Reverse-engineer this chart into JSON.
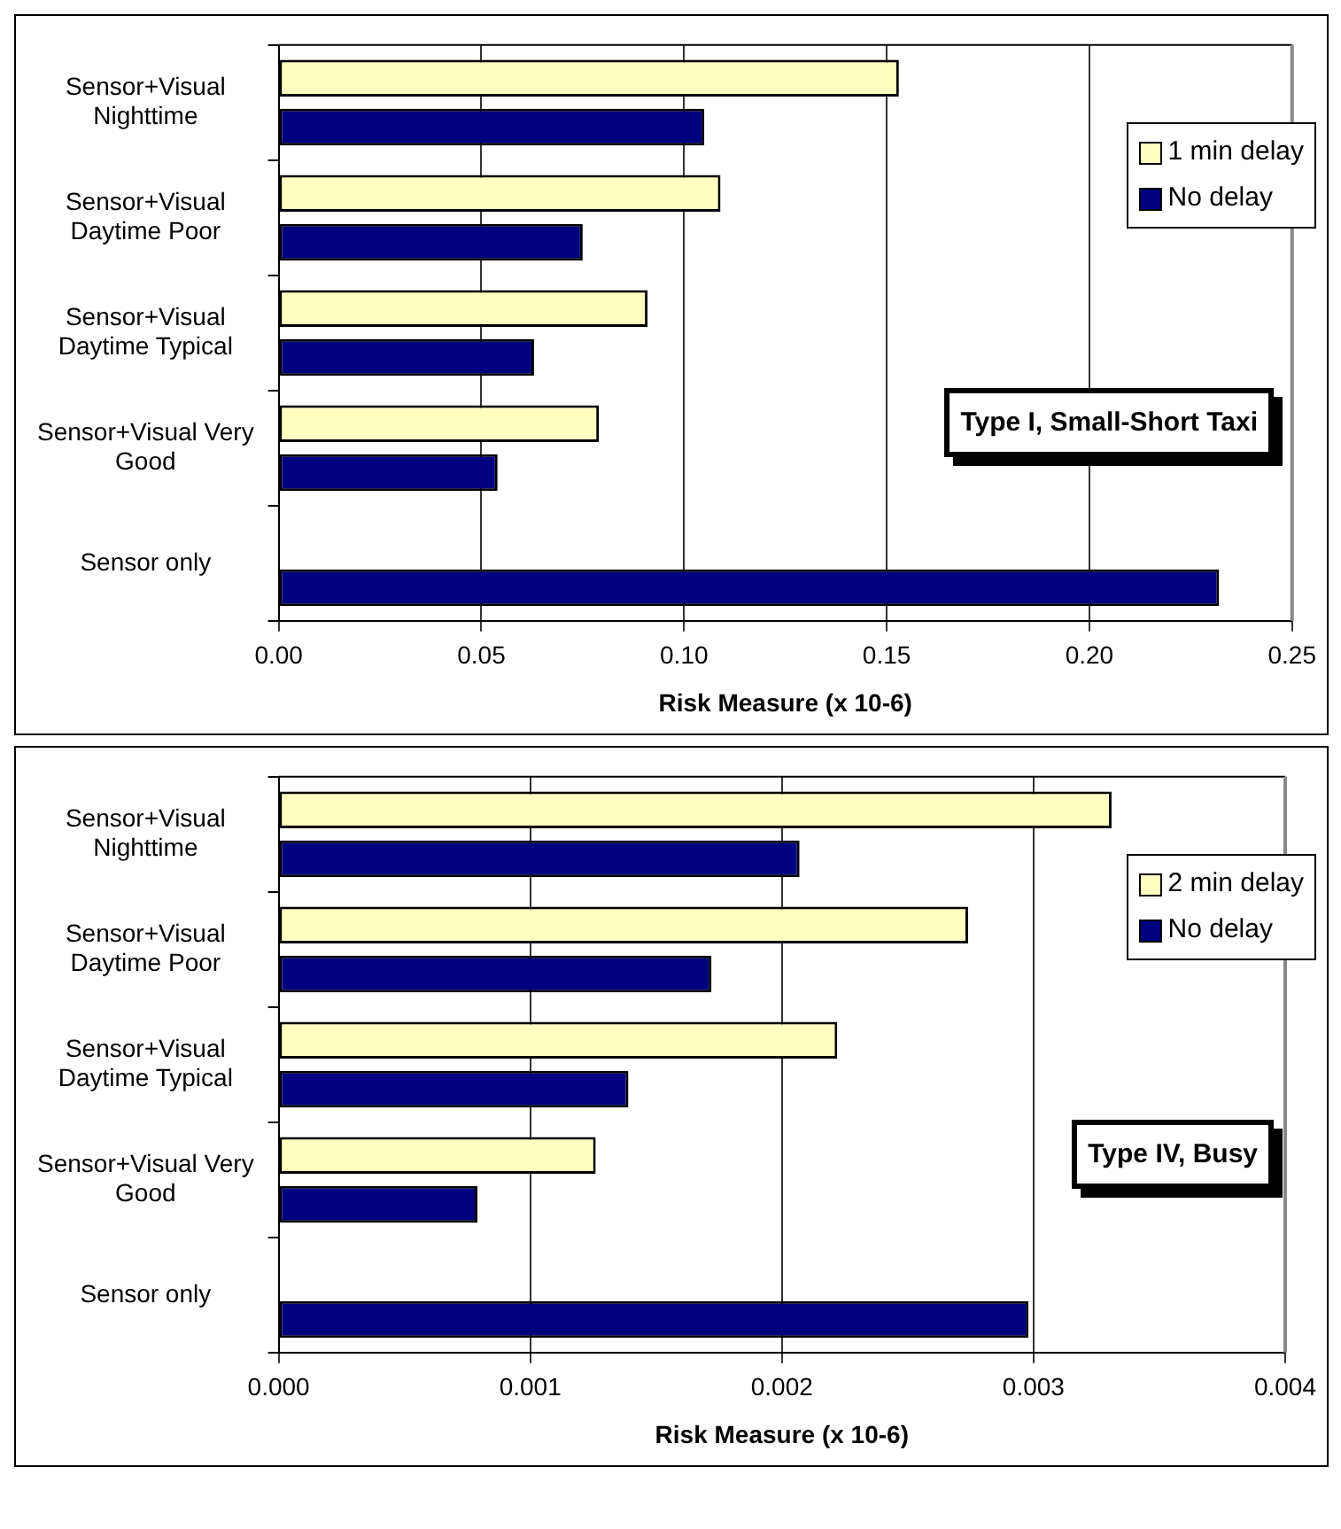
{
  "chart_data": [
    {
      "type": "bar",
      "orientation": "horizontal",
      "categories": [
        "Sensor+Visual Nighttime",
        "Sensor+Visual Daytime Poor",
        "Sensor+Visual Daytime Typical",
        "Sensor+Visual Very Good",
        "Sensor only"
      ],
      "series": [
        {
          "name": "1 min delay",
          "color": "#ffffc0",
          "values": [
            0.153,
            0.109,
            0.091,
            0.079,
            null
          ]
        },
        {
          "name": "No delay",
          "color": "#000080",
          "values": [
            0.105,
            0.075,
            0.063,
            0.054,
            0.232
          ]
        }
      ],
      "xlabel": "Risk Measure (x 10-6)",
      "xlim": [
        0,
        0.25
      ],
      "xticks": [
        {
          "value": 0,
          "label": "0.00"
        },
        {
          "value": 0.05,
          "label": "0.05"
        },
        {
          "value": 0.1,
          "label": "0.10"
        },
        {
          "value": 0.15,
          "label": "0.15"
        },
        {
          "value": 0.2,
          "label": "0.20"
        },
        {
          "value": 0.25,
          "label": "0.25"
        }
      ],
      "grid": "x",
      "legend": "top right",
      "annotations": [
        "Type I, Small-Short Taxi"
      ]
    },
    {
      "type": "bar",
      "orientation": "horizontal",
      "categories": [
        "Sensor+Visual Nighttime",
        "Sensor+Visual Daytime Poor",
        "Sensor+Visual Daytime Typical",
        "Sensor+Visual Very Good",
        "Sensor only"
      ],
      "series": [
        {
          "name": "2 min delay",
          "color": "#ffffc0",
          "values": [
            0.00331,
            0.00274,
            0.00222,
            0.00126,
            null
          ]
        },
        {
          "name": "No delay",
          "color": "#000080",
          "values": [
            0.00207,
            0.00172,
            0.00139,
            0.00079,
            0.00298
          ]
        }
      ],
      "xlabel": "Risk Measure (x 10-6)",
      "xlim": [
        0,
        0.004
      ],
      "xticks": [
        {
          "value": 0,
          "label": "0.000"
        },
        {
          "value": 0.001,
          "label": "0.001"
        },
        {
          "value": 0.002,
          "label": "0.002"
        },
        {
          "value": 0.003,
          "label": "0.003"
        },
        {
          "value": 0.004,
          "label": "0.004"
        }
      ],
      "grid": "x",
      "legend": "top right",
      "annotations": [
        "Type IV, Busy"
      ]
    }
  ]
}
